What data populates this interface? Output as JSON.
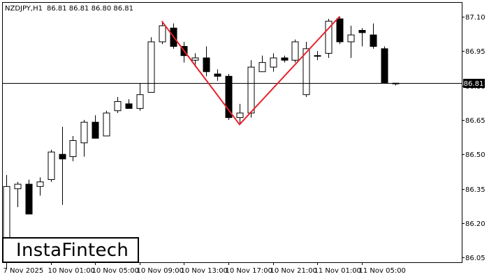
{
  "header": {
    "symbol": "NZDJPY,H1",
    "ohlc": "86.81 86.81 86.80 86.81"
  },
  "logo": {
    "text": "InstaFintech"
  },
  "colors": {
    "bull": "#ffffff",
    "bear": "#000000",
    "pattern": "#e8202a",
    "grid": "#000000"
  },
  "chart_data": {
    "type": "candlestick",
    "title": "NZDJPY,H1",
    "ylim": [
      86.03,
      87.16
    ],
    "y_ticks": [
      "87.10",
      "86.95",
      "86.80",
      "86.65",
      "86.50",
      "86.35",
      "86.20",
      "86.05"
    ],
    "x_tick_labels": [
      "7 Nov 2025",
      "10 Nov 01:00",
      "10 Nov 05:00",
      "10 Nov 09:00",
      "10 Nov 13:00",
      "10 Nov 17:00",
      "10 Nov 21:00",
      "11 Nov 01:00",
      "11 Nov 05:00"
    ],
    "x_tick_index": [
      0,
      4,
      8,
      12,
      16,
      20,
      24,
      28,
      32
    ],
    "current_price": "86.81",
    "current_price_value": 86.81,
    "candles": [
      {
        "o": 86.07,
        "h": 86.41,
        "l": 86.0,
        "c": 86.36
      },
      {
        "o": 86.35,
        "h": 86.38,
        "l": 86.27,
        "c": 86.37
      },
      {
        "o": 86.37,
        "h": 86.39,
        "l": 86.24,
        "c": 86.24
      },
      {
        "o": 86.36,
        "h": 86.4,
        "l": 86.32,
        "c": 86.38
      },
      {
        "o": 86.39,
        "h": 86.52,
        "l": 86.38,
        "c": 86.51
      },
      {
        "o": 86.5,
        "h": 86.62,
        "l": 86.28,
        "c": 86.48
      },
      {
        "o": 86.49,
        "h": 86.58,
        "l": 86.47,
        "c": 86.56
      },
      {
        "o": 86.55,
        "h": 86.65,
        "l": 86.49,
        "c": 86.64
      },
      {
        "o": 86.64,
        "h": 86.67,
        "l": 86.57,
        "c": 86.57
      },
      {
        "o": 86.58,
        "h": 86.69,
        "l": 86.58,
        "c": 86.68
      },
      {
        "o": 86.69,
        "h": 86.75,
        "l": 86.68,
        "c": 86.73
      },
      {
        "o": 86.72,
        "h": 86.74,
        "l": 86.7,
        "c": 86.7
      },
      {
        "o": 86.7,
        "h": 86.81,
        "l": 86.69,
        "c": 86.76
      },
      {
        "o": 86.77,
        "h": 87.01,
        "l": 86.77,
        "c": 86.99
      },
      {
        "o": 86.99,
        "h": 87.08,
        "l": 86.98,
        "c": 87.06
      },
      {
        "o": 87.05,
        "h": 87.07,
        "l": 86.96,
        "c": 86.97
      },
      {
        "o": 86.97,
        "h": 86.99,
        "l": 86.9,
        "c": 86.93
      },
      {
        "o": 86.91,
        "h": 86.94,
        "l": 86.88,
        "c": 86.92
      },
      {
        "o": 86.92,
        "h": 86.97,
        "l": 86.84,
        "c": 86.86
      },
      {
        "o": 86.85,
        "h": 86.87,
        "l": 86.82,
        "c": 86.84
      },
      {
        "o": 86.84,
        "h": 86.85,
        "l": 86.65,
        "c": 86.66
      },
      {
        "o": 86.66,
        "h": 86.72,
        "l": 86.63,
        "c": 86.68
      },
      {
        "o": 86.68,
        "h": 86.91,
        "l": 86.66,
        "c": 86.88
      },
      {
        "o": 86.86,
        "h": 86.93,
        "l": 86.86,
        "c": 86.9
      },
      {
        "o": 86.88,
        "h": 86.94,
        "l": 86.86,
        "c": 86.92
      },
      {
        "o": 86.92,
        "h": 86.93,
        "l": 86.9,
        "c": 86.91
      },
      {
        "o": 86.91,
        "h": 87.0,
        "l": 86.9,
        "c": 86.99
      },
      {
        "o": 86.76,
        "h": 86.99,
        "l": 86.75,
        "c": 86.96
      },
      {
        "o": 86.93,
        "h": 86.95,
        "l": 86.91,
        "c": 86.93
      },
      {
        "o": 86.94,
        "h": 87.09,
        "l": 86.92,
        "c": 87.08
      },
      {
        "o": 87.09,
        "h": 87.1,
        "l": 86.98,
        "c": 86.99
      },
      {
        "o": 86.99,
        "h": 87.06,
        "l": 86.92,
        "c": 87.02
      },
      {
        "o": 87.04,
        "h": 87.05,
        "l": 86.97,
        "c": 87.03
      },
      {
        "o": 87.02,
        "h": 87.07,
        "l": 86.96,
        "c": 86.97
      },
      {
        "o": 86.96,
        "h": 86.97,
        "l": 86.81,
        "c": 86.81
      },
      {
        "o": 86.81,
        "h": 86.81,
        "l": 86.8,
        "c": 86.81
      }
    ],
    "pattern": {
      "name": "Double Top",
      "points": [
        {
          "index": 14,
          "price": 87.08
        },
        {
          "index": 21,
          "price": 86.63
        },
        {
          "index": 30,
          "price": 87.1
        }
      ]
    }
  }
}
